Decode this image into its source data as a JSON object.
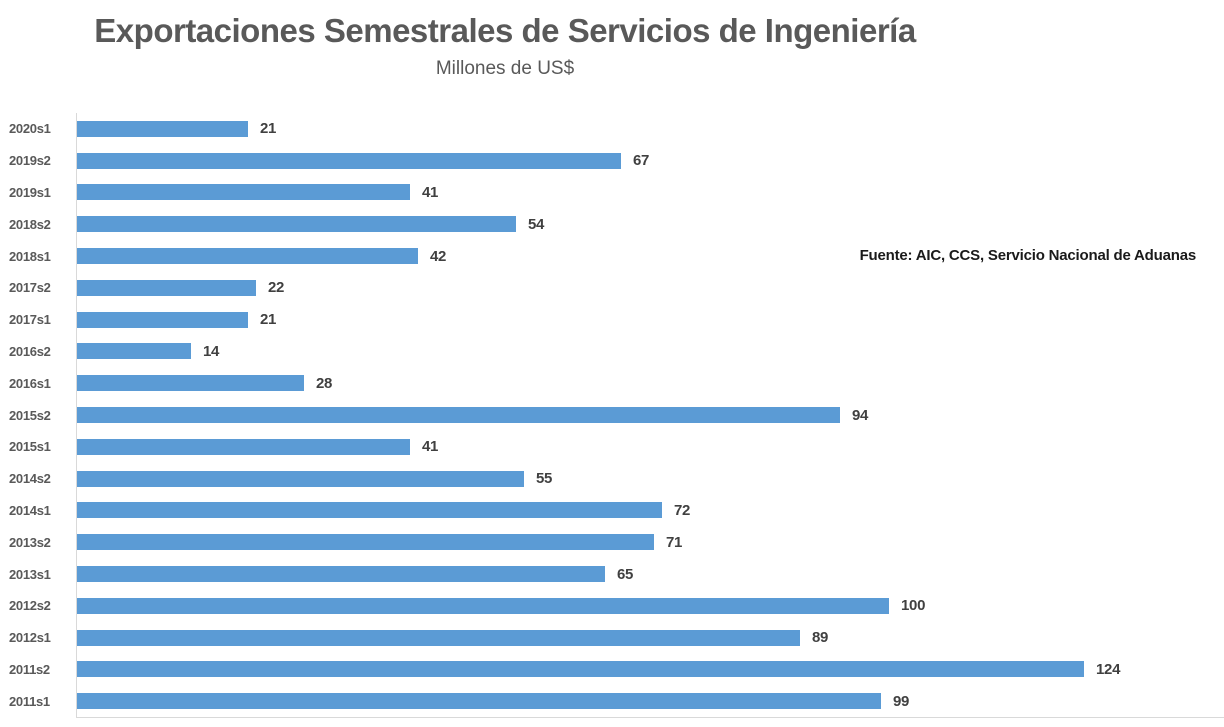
{
  "header": {
    "title": "Exportaciones Semestrales de Servicios de Ingeniería",
    "subtitle": "Millones de US$"
  },
  "source_note": "Fuente: AIC, CCS, Servicio Nacional de Aduanas",
  "colors": {
    "bar": "#5b9bd5",
    "title_text": "#595959",
    "category_text": "#595959",
    "value_text": "#404040",
    "axis_line": "#d9d9d9",
    "source_text": "#1a1a1a",
    "background": "#ffffff"
  },
  "chart_data": {
    "type": "bar",
    "orientation": "horizontal",
    "title": "Exportaciones Semestrales de Servicios de Ingeniería",
    "subtitle": "Millones de US$",
    "xlabel": "",
    "ylabel": "",
    "categories": [
      "2020s1",
      "2019s2",
      "2019s1",
      "2018s2",
      "2018s1",
      "2017s2",
      "2017s1",
      "2016s2",
      "2016s1",
      "2015s2",
      "2015s1",
      "2014s2",
      "2014s1",
      "2013s2",
      "2013s1",
      "2012s2",
      "2012s1",
      "2011s2",
      "2011s1"
    ],
    "values": [
      21,
      67,
      41,
      54,
      42,
      22,
      21,
      14,
      28,
      94,
      41,
      55,
      72,
      71,
      65,
      100,
      89,
      124,
      99
    ],
    "xlim": [
      0,
      124
    ],
    "grid": false,
    "legend": false,
    "value_labels": true,
    "annotation": "Fuente: AIC, CCS, Servicio Nacional de Aduanas"
  }
}
